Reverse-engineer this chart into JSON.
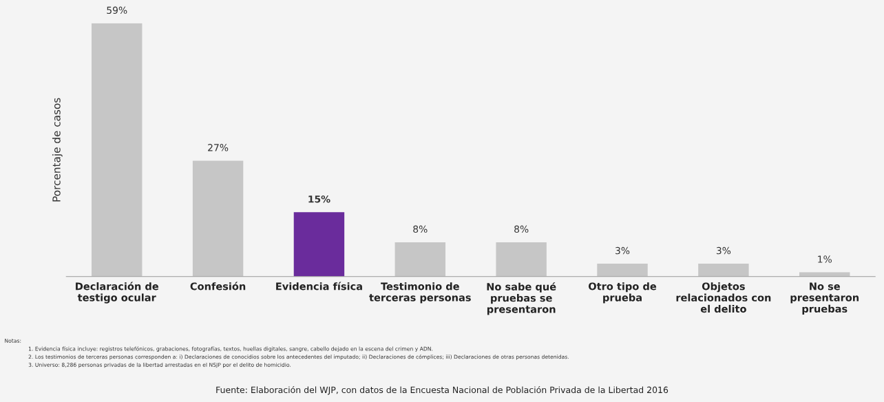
{
  "chart_data": {
    "type": "bar",
    "ylabel": "Porcentaje de casos",
    "categories": [
      "Declaración de\ntestigo ocular",
      "Confesión",
      "Evidencia física",
      "Testimonio de\nterceras personas",
      "No sabe qué\npruebas se\npresentaron",
      "Otro tipo de\nprueba",
      "Objetos\nrelacionados con\nel delito",
      "No se\npresentaron\npruebas"
    ],
    "values": [
      59,
      27,
      15,
      8,
      8,
      3,
      3,
      1
    ],
    "value_labels": [
      "59%",
      "27%",
      "15%",
      "8%",
      "8%",
      "3%",
      "3%",
      "1%"
    ],
    "colors": [
      "#c6c6c6",
      "#c6c6c6",
      "#6a2c9c",
      "#c6c6c6",
      "#c6c6c6",
      "#c6c6c6",
      "#c6c6c6",
      "#c6c6c6"
    ],
    "grid": false,
    "legend": false,
    "annotations": [
      "Notas:",
      "1. Evidencia física incluye: registros telefónicos, grabaciones, fotografías, textos, huellas digitales, sangre, cabello dejado en la escena del crimen y ADN.",
      "2. Los testimonios de terceras personas corresponden a: i) Declaraciones de conocidios sobre los antecedentes del imputado; ii) Declaraciones de cómplices; iii) Declaraciones de otras personas detenidas.",
      "3. Universo: 8,286 personas privadas de la libertad arrestadas en el NSJP por el delito de homicidio.",
      "Fuente: Elaboración del WJP, con datos de la Encuesta Nacional de Población Privada de la Libertad 2016"
    ]
  }
}
